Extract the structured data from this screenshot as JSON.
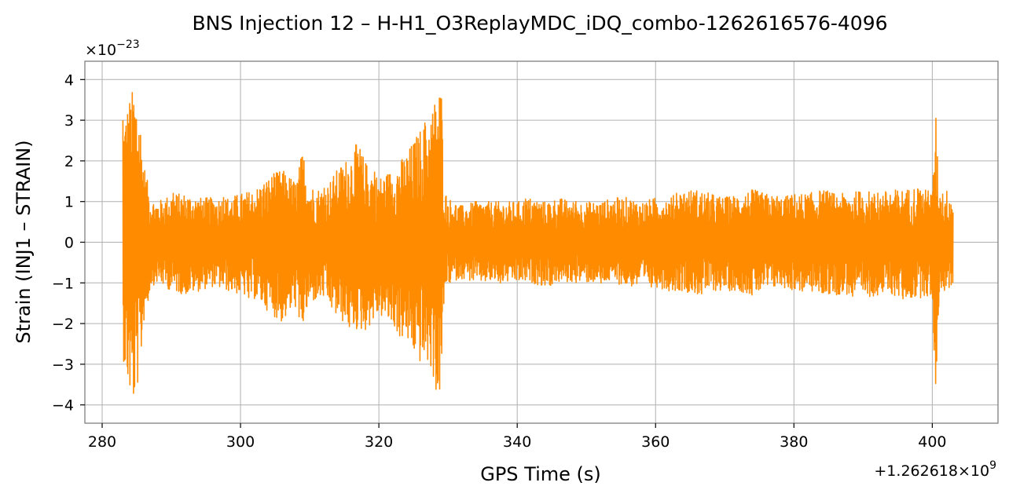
{
  "chart_data": {
    "type": "line",
    "title": "BNS Injection 12 – H-H1_O3ReplayMDC_iDQ_combo-1262616576-4096",
    "xlabel": "GPS Time (s)",
    "ylabel": "Strain (INJ1 – STRAIN)",
    "x_offset_label": "+1.262618×10",
    "x_offset_exponent": "9",
    "y_multiplier_label": "×10",
    "y_multiplier_exponent": "−23",
    "xlim": [
      277.5,
      409.5
    ],
    "ylim": [
      -4.45,
      4.45
    ],
    "x_ticks": [
      280,
      300,
      320,
      340,
      360,
      380,
      400
    ],
    "x_tick_labels": [
      "280",
      "300",
      "320",
      "340",
      "360",
      "380",
      "400"
    ],
    "y_ticks": [
      -4,
      -3,
      -2,
      -1,
      0,
      1,
      2,
      3,
      4
    ],
    "y_tick_labels": [
      "−4",
      "−3",
      "−2",
      "−1",
      "0",
      "1",
      "2",
      "3",
      "4"
    ],
    "grid": true,
    "series": [
      {
        "color": "#ff8c00",
        "x": [
          283.0,
          283.5,
          284.0,
          284.5,
          285.0,
          285.5,
          286.0,
          287,
          288,
          289,
          290,
          292,
          294,
          296,
          298,
          300,
          302,
          304,
          306,
          308,
          309,
          310,
          312,
          314,
          316,
          317,
          318,
          320,
          322,
          324,
          326,
          327,
          328,
          328.5,
          329.0,
          329.5,
          330,
          332,
          334,
          336,
          338,
          340,
          342,
          344,
          346,
          348,
          350,
          352,
          354,
          356,
          358,
          360,
          362,
          364,
          366,
          368,
          370,
          372,
          374,
          376,
          378,
          380,
          382,
          384,
          386,
          388,
          390,
          392,
          394,
          396,
          398,
          399,
          400,
          400.5,
          401,
          402,
          403
        ],
        "y_max": [
          3.0,
          3.3,
          3.6,
          3.8,
          3.7,
          3.1,
          2.0,
          1.1,
          1.0,
          1.1,
          1.2,
          1.2,
          1.1,
          1.1,
          1.1,
          1.2,
          1.3,
          1.6,
          1.8,
          1.5,
          2.3,
          1.4,
          1.3,
          1.8,
          2.2,
          2.5,
          2.0,
          1.6,
          1.8,
          2.2,
          2.8,
          3.0,
          3.5,
          3.7,
          4.0,
          1.3,
          1.1,
          0.9,
          1.0,
          1.0,
          1.0,
          1.0,
          1.1,
          1.0,
          1.1,
          1.0,
          1.0,
          1.0,
          1.1,
          1.1,
          1.0,
          1.1,
          1.1,
          1.3,
          1.3,
          1.2,
          1.1,
          1.2,
          1.3,
          1.2,
          1.1,
          1.2,
          1.2,
          1.3,
          1.2,
          1.2,
          1.3,
          1.2,
          1.3,
          1.3,
          1.4,
          1.3,
          1.2,
          3.2,
          1.3,
          1.3,
          1.2
        ],
        "y_min": [
          -2.8,
          -3.4,
          -3.8,
          -4.05,
          -3.7,
          -3.2,
          -2.0,
          -1.1,
          -1.0,
          -1.1,
          -1.2,
          -1.3,
          -1.2,
          -1.1,
          -1.2,
          -1.3,
          -1.4,
          -1.7,
          -2.0,
          -1.6,
          -2.1,
          -1.5,
          -1.4,
          -1.9,
          -2.1,
          -2.2,
          -2.2,
          -1.8,
          -2.1,
          -2.5,
          -3.0,
          -3.0,
          -3.4,
          -4.05,
          -3.6,
          -1.2,
          -1.0,
          -0.9,
          -1.0,
          -1.0,
          -1.0,
          -1.0,
          -1.0,
          -1.1,
          -1.0,
          -1.0,
          -1.0,
          -1.0,
          -1.0,
          -1.1,
          -1.1,
          -1.1,
          -1.2,
          -1.2,
          -1.3,
          -1.2,
          -1.2,
          -1.2,
          -1.3,
          -1.2,
          -1.1,
          -1.2,
          -1.2,
          -1.3,
          -1.3,
          -1.3,
          -1.4,
          -1.3,
          -1.3,
          -1.4,
          -1.4,
          -1.3,
          -1.5,
          -3.85,
          -1.3,
          -1.2,
          -1.1
        ]
      }
    ]
  }
}
